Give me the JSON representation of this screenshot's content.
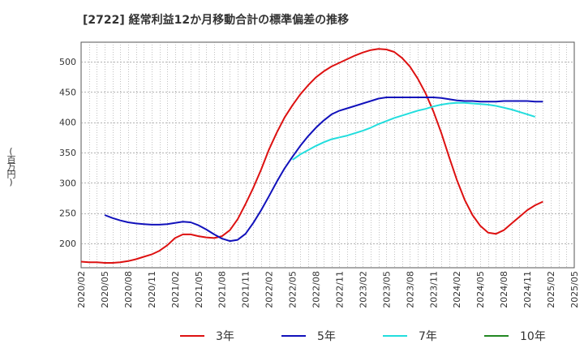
{
  "title": "[2722]  経常利益12か月移動合計の標準偏差の推移",
  "ylabel": "(百万円)",
  "chart_data": {
    "type": "line",
    "yticks": [
      200,
      250,
      300,
      350,
      400,
      450,
      500
    ],
    "ylim": [
      160,
      532
    ],
    "xticks": [
      "2020/02",
      "2020/05",
      "2020/08",
      "2020/11",
      "2021/02",
      "2021/05",
      "2021/08",
      "2021/11",
      "2022/02",
      "2022/05",
      "2022/08",
      "2022/11",
      "2023/02",
      "2023/05",
      "2023/08",
      "2023/11",
      "2024/02",
      "2024/05",
      "2024/08",
      "2024/11",
      "2025/02",
      "2025/05"
    ],
    "grid": true,
    "legend_position": "bottom",
    "series": [
      {
        "name": "3年",
        "color": "#dd1111",
        "start": "2020/02",
        "values": [
          170,
          169,
          169,
          168,
          168,
          169,
          171,
          174,
          178,
          182,
          188,
          197,
          209,
          215,
          215,
          212,
          210,
          209,
          212,
          222,
          240,
          265,
          292,
          322,
          355,
          383,
          408,
          428,
          446,
          461,
          474,
          484,
          492,
          498,
          504,
          510,
          515,
          519,
          521,
          520,
          516,
          506,
          492,
          472,
          448,
          418,
          383,
          343,
          305,
          272,
          247,
          229,
          218,
          216,
          222,
          233,
          244,
          255,
          263,
          269
        ]
      },
      {
        "name": "5年",
        "color": "#1111bb",
        "start": "2020/05",
        "values": [
          247,
          242,
          238,
          235,
          233,
          232,
          231,
          231,
          232,
          234,
          236,
          235,
          230,
          223,
          215,
          208,
          204,
          206,
          216,
          234,
          255,
          278,
          302,
          324,
          343,
          361,
          377,
          391,
          403,
          413,
          419,
          423,
          427,
          431,
          435,
          439,
          441,
          441,
          441,
          441,
          441,
          441,
          441,
          440,
          438,
          436,
          435,
          435,
          434,
          434,
          434,
          435,
          435,
          435,
          435,
          434,
          434
        ]
      },
      {
        "name": "7年",
        "color": "#22dddd",
        "start": "2022/05",
        "values": [
          338,
          347,
          354,
          361,
          367,
          372,
          375,
          378,
          382,
          386,
          391,
          397,
          402,
          407,
          411,
          415,
          419,
          422,
          426,
          429,
          431,
          432,
          432,
          431,
          430,
          429,
          427,
          424,
          421,
          417,
          413,
          409
        ]
      },
      {
        "name": "10年",
        "color": "#228822",
        "start": "",
        "values": []
      }
    ]
  }
}
